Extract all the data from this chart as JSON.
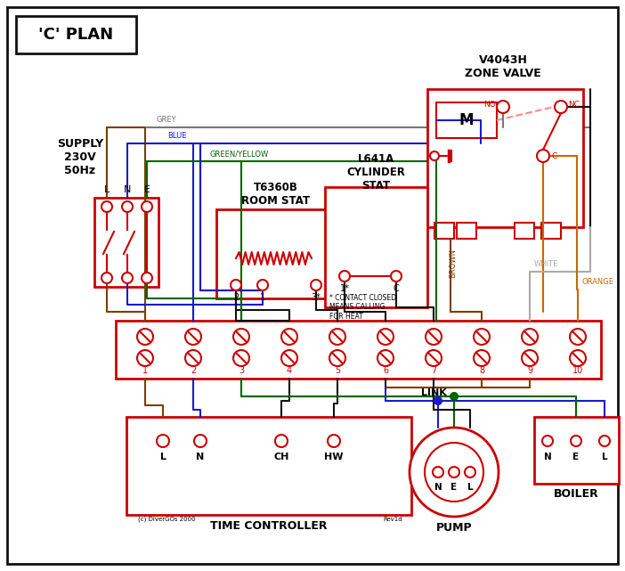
{
  "title": "'C' PLAN",
  "bg": "#ffffff",
  "red": "#cc0000",
  "blue": "#1a1acc",
  "green": "#006600",
  "grey": "#777777",
  "brown": "#7B3F00",
  "black": "#111111",
  "orange": "#cc6600",
  "white_wire": "#aaaaaa",
  "pink": "#ff8888",
  "zone_valve_title": "V4043H\nZONE VALVE",
  "room_stat_title": "T6360B\nROOM STAT",
  "cyl_stat_title": "L641A\nCYLINDER\nSTAT",
  "supply_title": "SUPPLY\n230V\n50Hz",
  "tc_title": "TIME CONTROLLER",
  "pump_title": "PUMP",
  "boiler_title": "BOILER",
  "link_label": "LINK",
  "contact_note": "* CONTACT CLOSED\nMEANS CALLING\nFOR HEAT",
  "copyright": "(c) DiverGOs 2000",
  "rev": "Rev1d"
}
